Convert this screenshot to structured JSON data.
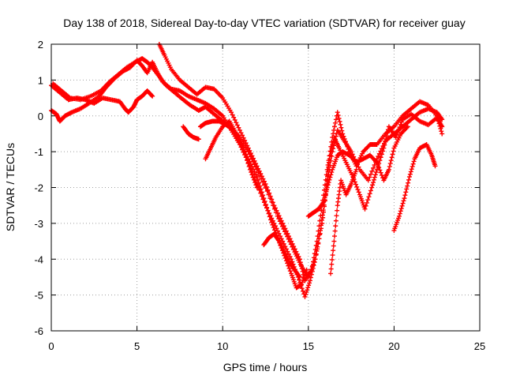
{
  "chart_data": {
    "type": "scatter",
    "title": "Day 138 of 2018, Sidereal Day-to-day VTEC variation (SDTVAR) for receiver guay",
    "xlabel": "GPS time / hours",
    "ylabel": "SDTVAR / TECUs",
    "xlim": [
      0,
      25
    ],
    "ylim": [
      -6,
      2
    ],
    "x_ticks": [
      0,
      5,
      10,
      15,
      20,
      25
    ],
    "y_ticks": [
      -6,
      -5,
      -4,
      -3,
      -2,
      -1,
      0,
      1,
      2
    ],
    "grid": true,
    "marker": "plus",
    "color": "#ff0000",
    "series": [
      {
        "points": [
          [
            0.0,
            0.85
          ],
          [
            0.5,
            0.65
          ],
          [
            1.0,
            0.45
          ],
          [
            1.5,
            0.5
          ],
          [
            2.0,
            0.45
          ],
          [
            2.5,
            0.35
          ],
          [
            3.0,
            0.5
          ],
          [
            3.5,
            0.45
          ],
          [
            4.0,
            0.4
          ],
          [
            4.3,
            0.2
          ],
          [
            4.5,
            0.1
          ],
          [
            4.8,
            0.25
          ],
          [
            5.0,
            0.45
          ],
          [
            5.3,
            0.55
          ],
          [
            5.6,
            0.7
          ],
          [
            5.9,
            0.55
          ]
        ]
      },
      {
        "points": [
          [
            0.0,
            0.15
          ],
          [
            0.3,
            0.05
          ],
          [
            0.5,
            -0.15
          ],
          [
            0.8,
            0.0
          ],
          [
            1.2,
            0.1
          ],
          [
            1.7,
            0.2
          ],
          [
            2.2,
            0.35
          ],
          [
            2.8,
            0.55
          ],
          [
            3.2,
            0.8
          ],
          [
            3.7,
            1.05
          ],
          [
            4.2,
            1.25
          ],
          [
            4.6,
            1.35
          ],
          [
            5.0,
            1.55
          ],
          [
            5.3,
            1.4
          ],
          [
            5.6,
            1.2
          ],
          [
            5.9,
            1.5
          ],
          [
            6.2,
            1.2
          ],
          [
            6.5,
            0.95
          ],
          [
            7.0,
            0.75
          ],
          [
            7.5,
            0.7
          ],
          [
            8.0,
            0.55
          ],
          [
            8.5,
            0.45
          ],
          [
            9.0,
            0.35
          ],
          [
            9.5,
            0.2
          ],
          [
            10.0,
            0.0
          ],
          [
            10.5,
            -0.4
          ],
          [
            11.0,
            -0.8
          ],
          [
            11.5,
            -1.3
          ],
          [
            12.0,
            -1.9
          ],
          [
            12.5,
            -2.5
          ],
          [
            13.0,
            -3.0
          ],
          [
            13.5,
            -3.5
          ],
          [
            14.0,
            -4.0
          ],
          [
            14.4,
            -4.5
          ],
          [
            14.8,
            -5.05
          ],
          [
            15.1,
            -4.6
          ],
          [
            15.4,
            -4.0
          ],
          [
            15.7,
            -3.2
          ],
          [
            16.0,
            -2.2
          ],
          [
            16.2,
            -1.3
          ],
          [
            16.5,
            -0.6
          ],
          [
            16.8,
            -0.9
          ],
          [
            17.2,
            -1.3
          ],
          [
            17.6,
            -1.7
          ],
          [
            18.0,
            -2.2
          ],
          [
            18.3,
            -2.6
          ],
          [
            18.7,
            -2.0
          ],
          [
            19.0,
            -1.5
          ],
          [
            19.4,
            -0.9
          ],
          [
            19.7,
            -0.3
          ],
          [
            20.1,
            -0.6
          ],
          [
            20.5,
            -0.1
          ],
          [
            21.0,
            0.05
          ],
          [
            21.5,
            -0.15
          ],
          [
            22.0,
            -0.25
          ],
          [
            22.5,
            -0.05
          ],
          [
            22.8,
            -0.3
          ]
        ]
      },
      {
        "points": [
          [
            0.1,
            0.9
          ],
          [
            0.6,
            0.7
          ],
          [
            1.1,
            0.5
          ],
          [
            1.7,
            0.45
          ],
          [
            2.3,
            0.55
          ],
          [
            2.9,
            0.7
          ],
          [
            3.4,
            0.95
          ],
          [
            3.9,
            1.15
          ],
          [
            4.4,
            1.35
          ],
          [
            4.9,
            1.5
          ],
          [
            5.3,
            1.6
          ],
          [
            5.6,
            1.5
          ],
          [
            5.9,
            1.35
          ],
          [
            6.3,
            1.1
          ],
          [
            6.7,
            0.85
          ],
          [
            7.2,
            0.65
          ],
          [
            7.7,
            0.45
          ],
          [
            8.1,
            0.3
          ],
          [
            8.6,
            0.15
          ],
          [
            9.0,
            0.25
          ],
          [
            9.5,
            0.05
          ],
          [
            10.0,
            -0.15
          ],
          [
            10.5,
            -0.35
          ],
          [
            11.0,
            -0.6
          ],
          [
            11.5,
            -1.0
          ],
          [
            12.0,
            -1.5
          ],
          [
            12.6,
            -2.1
          ],
          [
            13.2,
            -2.8
          ],
          [
            13.7,
            -3.3
          ],
          [
            14.2,
            -3.8
          ],
          [
            14.6,
            -4.2
          ],
          [
            15.0,
            -4.5
          ],
          [
            15.4,
            -4.0
          ],
          [
            15.8,
            -3.0
          ],
          [
            16.1,
            -1.9
          ],
          [
            16.4,
            -1.0
          ],
          [
            16.7,
            -0.4
          ],
          [
            17.1,
            -0.7
          ],
          [
            17.5,
            -1.0
          ],
          [
            18.0,
            -1.5
          ],
          [
            18.5,
            -1.8
          ],
          [
            19.0,
            -1.2
          ],
          [
            19.5,
            -0.7
          ],
          [
            20.0,
            -0.5
          ],
          [
            20.5,
            -0.3
          ],
          [
            21.0,
            -0.1
          ],
          [
            21.5,
            0.1
          ],
          [
            22.0,
            0.2
          ],
          [
            22.5,
            0.1
          ],
          [
            22.8,
            -0.1
          ]
        ]
      },
      {
        "points": [
          [
            6.3,
            2.0
          ],
          [
            6.6,
            1.7
          ],
          [
            7.0,
            1.3
          ],
          [
            7.5,
            1.0
          ],
          [
            8.0,
            0.8
          ],
          [
            8.5,
            0.6
          ],
          [
            9.0,
            0.8
          ],
          [
            9.5,
            0.75
          ],
          [
            10.0,
            0.5
          ],
          [
            10.5,
            0.1
          ],
          [
            11.0,
            -0.4
          ],
          [
            11.5,
            -0.9
          ],
          [
            12.0,
            -1.4
          ],
          [
            12.5,
            -1.9
          ],
          [
            13.0,
            -2.5
          ],
          [
            13.5,
            -3.0
          ],
          [
            14.0,
            -3.5
          ],
          [
            14.5,
            -4.0
          ],
          [
            14.8,
            -4.6
          ],
          [
            15.2,
            -4.3
          ],
          [
            15.5,
            -3.5
          ],
          [
            15.8,
            -2.5
          ],
          [
            16.1,
            -1.5
          ],
          [
            16.4,
            -0.6
          ],
          [
            16.7,
            0.1
          ],
          [
            17.0,
            -0.5
          ],
          [
            17.4,
            -1.0
          ],
          [
            17.8,
            -1.4
          ],
          [
            18.2,
            -1.0
          ],
          [
            18.6,
            -0.8
          ],
          [
            19.0,
            -0.8
          ],
          [
            19.5,
            -0.5
          ],
          [
            20.0,
            -0.3
          ],
          [
            20.5,
            0.0
          ],
          [
            21.0,
            0.2
          ],
          [
            21.5,
            0.4
          ],
          [
            22.0,
            0.3
          ],
          [
            22.5,
            0.0
          ],
          [
            22.8,
            -0.5
          ]
        ]
      },
      {
        "points": [
          [
            7.7,
            -0.3
          ],
          [
            8.0,
            -0.5
          ],
          [
            8.3,
            -0.6
          ],
          [
            8.6,
            -0.65
          ]
        ]
      },
      {
        "points": [
          [
            8.7,
            -0.3
          ],
          [
            9.0,
            -0.2
          ],
          [
            9.4,
            -0.15
          ],
          [
            9.8,
            -0.15
          ],
          [
            10.2,
            -0.25
          ],
          [
            10.6,
            -0.4
          ],
          [
            11.0,
            -0.75
          ],
          [
            11.5,
            -1.2
          ],
          [
            12.0,
            -1.7
          ],
          [
            12.4,
            -2.3
          ],
          [
            12.8,
            -2.9
          ],
          [
            13.2,
            -3.4
          ],
          [
            13.6,
            -3.9
          ],
          [
            14.0,
            -4.4
          ],
          [
            14.3,
            -4.8
          ],
          [
            14.6,
            -4.7
          ],
          [
            14.9,
            -4.3
          ]
        ]
      },
      {
        "points": [
          [
            9.0,
            -1.2
          ],
          [
            9.3,
            -0.9
          ],
          [
            9.6,
            -0.6
          ],
          [
            10.0,
            -0.3
          ],
          [
            10.4,
            -0.15
          ],
          [
            10.8,
            -0.5
          ],
          [
            11.2,
            -0.9
          ],
          [
            11.6,
            -1.5
          ],
          [
            12.0,
            -2.0
          ]
        ]
      },
      {
        "points": [
          [
            12.4,
            -3.6
          ],
          [
            12.7,
            -3.4
          ],
          [
            13.0,
            -3.3
          ],
          [
            13.3,
            -3.5
          ],
          [
            13.6,
            -3.8
          ],
          [
            13.9,
            -4.1
          ],
          [
            14.2,
            -4.3
          ],
          [
            14.5,
            -4.5
          ]
        ]
      },
      {
        "points": [
          [
            15.0,
            -2.8
          ],
          [
            15.3,
            -2.7
          ],
          [
            15.6,
            -2.6
          ],
          [
            15.9,
            -2.4
          ],
          [
            16.1,
            -2.0
          ],
          [
            16.4,
            -1.5
          ],
          [
            16.7,
            -1.1
          ],
          [
            17.0,
            -1.0
          ],
          [
            17.4,
            -1.1
          ],
          [
            17.8,
            -1.3
          ],
          [
            18.2,
            -1.2
          ],
          [
            18.6,
            -1.1
          ],
          [
            19.0,
            -1.3
          ],
          [
            19.4,
            -1.8
          ],
          [
            19.7,
            -1.5
          ],
          [
            20.0,
            -0.9
          ],
          [
            20.4,
            -0.5
          ],
          [
            20.8,
            -0.3
          ]
        ]
      },
      {
        "points": [
          [
            16.3,
            -4.4
          ],
          [
            16.5,
            -3.5
          ],
          [
            16.7,
            -2.5
          ],
          [
            16.9,
            -1.8
          ],
          [
            17.2,
            -2.2
          ],
          [
            17.5,
            -1.9
          ],
          [
            17.8,
            -1.5
          ]
        ]
      },
      {
        "points": [
          [
            20.0,
            -3.2
          ],
          [
            20.3,
            -2.8
          ],
          [
            20.6,
            -2.3
          ],
          [
            20.9,
            -1.7
          ],
          [
            21.2,
            -1.2
          ],
          [
            21.5,
            -0.9
          ],
          [
            21.9,
            -0.8
          ],
          [
            22.2,
            -1.1
          ],
          [
            22.4,
            -1.4
          ]
        ]
      }
    ]
  }
}
